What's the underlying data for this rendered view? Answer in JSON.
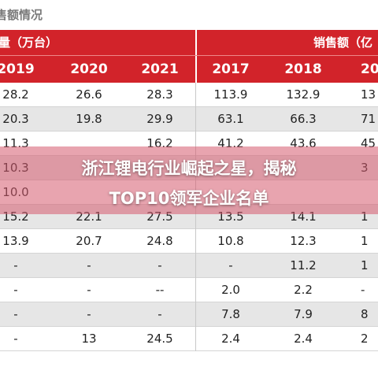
{
  "header": {
    "title": "售额情况"
  },
  "table": {
    "group_headers": [
      "量（万台）",
      "销售额（亿"
    ],
    "columns": [
      "2019",
      "2020",
      "2021",
      "2017",
      "2018",
      "20"
    ],
    "rows": [
      [
        "28.2",
        "26.6",
        "28.3",
        "113.9",
        "132.9",
        "13"
      ],
      [
        "20.3",
        "19.8",
        "29.9",
        "63.1",
        "66.3",
        "71"
      ],
      [
        "11.3",
        null,
        "16.2",
        "41.2",
        "43.6",
        "45"
      ],
      [
        "10.3",
        null,
        null,
        null,
        null,
        "3"
      ],
      [
        "10.0",
        null,
        null,
        null,
        null,
        null
      ],
      [
        "15.2",
        "22.1",
        "27.5",
        "13.5",
        "14.1",
        "1"
      ],
      [
        "13.9",
        "20.7",
        "24.8",
        "10.8",
        "12.3",
        "1"
      ],
      [
        "-",
        "-",
        "-",
        "-",
        "11.2",
        "1"
      ],
      [
        "-",
        "-",
        "--",
        "2.0",
        "2.2",
        "-"
      ],
      [
        "-",
        "-",
        "-",
        "7.8",
        "7.9",
        "8"
      ],
      [
        "-",
        "13",
        "24.5",
        "2.4",
        "2.4",
        "2"
      ]
    ]
  },
  "overlay": {
    "lines": [
      "浙江锂电行业崛起之星，揭秘",
      "TOP10领军企业名单"
    ]
  }
}
